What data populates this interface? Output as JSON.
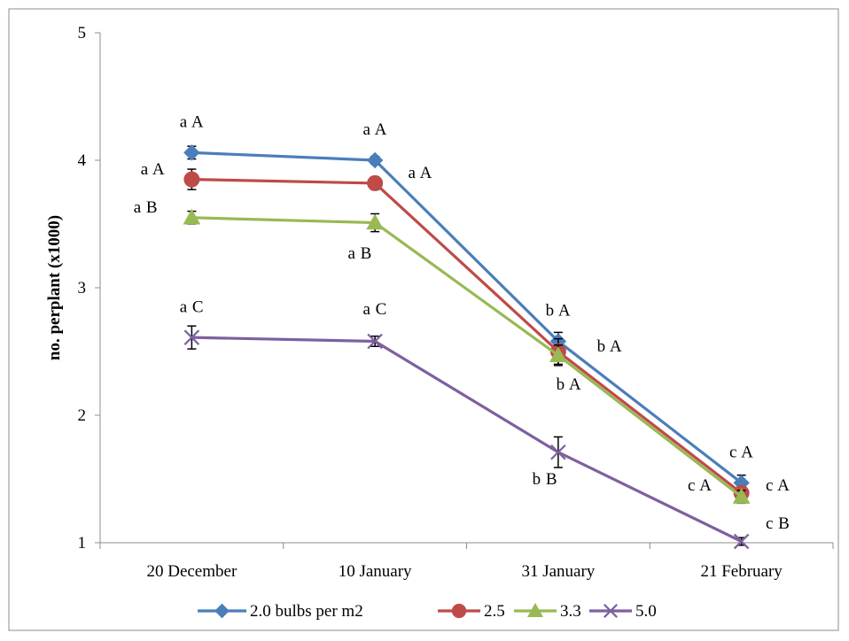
{
  "chart_data": {
    "type": "line",
    "title": "",
    "xlabel": "",
    "ylabel": "no. perplant (x1000)",
    "ylim": [
      1,
      5
    ],
    "yticks": [
      "1",
      "2",
      "3",
      "4",
      "5"
    ],
    "categories": [
      "20 December",
      "10 January",
      "31 January",
      "21 February"
    ],
    "grid": false,
    "legend_position": "bottom",
    "series": [
      {
        "name": "2.0 bulbs per m2",
        "color": "#4a7ebb",
        "marker": "diamond",
        "values": [
          4.06,
          4.0,
          2.58,
          1.47
        ],
        "errors": [
          0.05,
          0.03,
          0.07,
          0.06
        ]
      },
      {
        "name": "2.5",
        "color": "#be4b48",
        "marker": "circle",
        "values": [
          3.85,
          3.82,
          2.5,
          1.39
        ],
        "errors": [
          0.08,
          0.05,
          0.1,
          0.05
        ]
      },
      {
        "name": "3.3",
        "color": "#98b954",
        "marker": "triangle",
        "values": [
          3.55,
          3.51,
          2.47,
          1.36
        ],
        "errors": [
          0.05,
          0.07,
          0.08,
          0.05
        ]
      },
      {
        "name": "5.0",
        "color": "#7d60a0",
        "marker": "x",
        "values": [
          2.61,
          2.58,
          1.71,
          1.01
        ],
        "errors": [
          0.09,
          0.04,
          0.12,
          0.03
        ]
      }
    ],
    "annotations": [
      {
        "text": "a  A",
        "cat": 0,
        "y": 4.26,
        "dx": 0,
        "anchor": "middle"
      },
      {
        "text": "a  A",
        "cat": 0,
        "y": 3.89,
        "dx": -44,
        "anchor": "middle"
      },
      {
        "text": "a  B",
        "cat": 0,
        "y": 3.59,
        "dx": -52,
        "anchor": "middle"
      },
      {
        "text": "a  C",
        "cat": 0,
        "y": 2.81,
        "dx": 0,
        "anchor": "middle"
      },
      {
        "text": "a  A",
        "cat": 1,
        "y": 4.2,
        "dx": 0,
        "anchor": "middle"
      },
      {
        "text": "a  A",
        "cat": 1,
        "y": 3.86,
        "dx": 51,
        "anchor": "middle"
      },
      {
        "text": "a  B",
        "cat": 1,
        "y": 3.23,
        "dx": -17,
        "anchor": "middle"
      },
      {
        "text": "a  C",
        "cat": 1,
        "y": 2.79,
        "dx": 0,
        "anchor": "middle"
      },
      {
        "text": "b  A",
        "cat": 2,
        "y": 2.78,
        "dx": 0,
        "anchor": "middle"
      },
      {
        "text": "b  A",
        "cat": 2,
        "y": 2.5,
        "dx": 58,
        "anchor": "middle"
      },
      {
        "text": "b  A",
        "cat": 2,
        "y": 2.2,
        "dx": 12,
        "anchor": "middle"
      },
      {
        "text": "b  B",
        "cat": 2,
        "y": 1.46,
        "dx": -15,
        "anchor": "middle"
      },
      {
        "text": "c  A",
        "cat": 3,
        "y": 1.67,
        "dx": 0,
        "anchor": "middle"
      },
      {
        "text": "c  A",
        "cat": 3,
        "y": 1.41,
        "dx": 41,
        "anchor": "middle"
      },
      {
        "text": "c  A",
        "cat": 3,
        "y": 1.41,
        "dx": -47,
        "anchor": "middle"
      },
      {
        "text": "c  B",
        "cat": 3,
        "y": 1.11,
        "dx": 41,
        "anchor": "middle"
      }
    ]
  }
}
